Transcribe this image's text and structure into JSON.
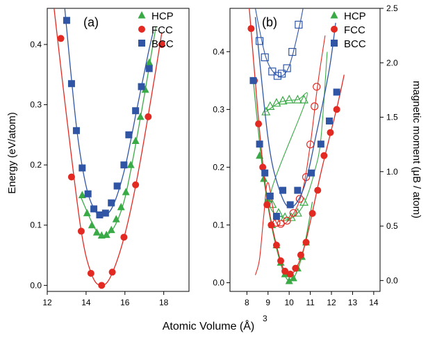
{
  "figure": {
    "ylabel_left": "Energy (eV/atom)",
    "ylabel_right": "magnetic moment (μB / atom)",
    "xlabel": "Atomic Volume (Å)",
    "xlabel_sup": "3"
  },
  "chart_data": [
    {
      "type": "scatter",
      "panel_label": "(a)",
      "xlim": [
        12,
        19.3
      ],
      "ylim": [
        -0.01,
        0.46
      ],
      "x_ticks": [
        12,
        14,
        16,
        18
      ],
      "y_ticks": [
        0.0,
        0.1,
        0.2,
        0.3,
        0.4
      ],
      "y_tick_labels": [
        "0.0",
        "0.1",
        "0.2",
        "0.3",
        "0.4"
      ],
      "legend": {
        "position": "top-right",
        "entries": [
          "HCP",
          "FCC",
          "BCC"
        ]
      },
      "series": [
        {
          "name": "HCP",
          "color": "#3aaa46",
          "marker": "triangle",
          "points": [
            [
              13.8,
              0.15
            ],
            [
              14.05,
              0.12
            ],
            [
              14.3,
              0.1
            ],
            [
              14.55,
              0.088
            ],
            [
              14.8,
              0.083
            ],
            [
              15.05,
              0.084
            ],
            [
              15.3,
              0.092
            ],
            [
              15.55,
              0.11
            ],
            [
              15.8,
              0.13
            ],
            [
              16.05,
              0.155
            ],
            [
              16.3,
              0.2
            ],
            [
              16.55,
              0.24
            ],
            [
              16.8,
              0.28
            ],
            [
              17.05,
              0.325
            ],
            [
              17.25,
              0.37
            ]
          ],
          "fit": [
            [
              13.75,
              0.145
            ],
            [
              14.5,
              0.092
            ],
            [
              15.0,
              0.083
            ],
            [
              15.5,
              0.1
            ],
            [
              16.0,
              0.145
            ],
            [
              16.5,
              0.225
            ],
            [
              17.0,
              0.315
            ],
            [
              17.6,
              0.43
            ]
          ]
        },
        {
          "name": "FCC",
          "color": "#e32a22",
          "marker": "circle",
          "points": [
            [
              12.7,
              0.41
            ],
            [
              13.25,
              0.18
            ],
            [
              13.75,
              0.09
            ],
            [
              14.25,
              0.02
            ],
            [
              14.8,
              0.0
            ],
            [
              15.35,
              0.022
            ],
            [
              15.95,
              0.08
            ],
            [
              16.55,
              0.167
            ],
            [
              17.2,
              0.28
            ],
            [
              17.9,
              0.4
            ]
          ],
          "fit": [
            [
              12.35,
              0.46
            ],
            [
              13.0,
              0.28
            ],
            [
              13.75,
              0.09
            ],
            [
              14.3,
              0.017
            ],
            [
              14.8,
              0.0
            ],
            [
              15.3,
              0.017
            ],
            [
              16.0,
              0.085
            ],
            [
              16.7,
              0.19
            ],
            [
              17.5,
              0.34
            ],
            [
              17.9,
              0.42
            ]
          ]
        },
        {
          "name": "BCC",
          "color": "#2f55a4",
          "marker": "square",
          "points": [
            [
              13.0,
              0.44
            ],
            [
              13.25,
              0.335
            ],
            [
              13.5,
              0.257
            ],
            [
              13.8,
              0.195
            ],
            [
              14.1,
              0.152
            ],
            [
              14.4,
              0.127
            ],
            [
              14.7,
              0.117
            ],
            [
              15.0,
              0.12
            ],
            [
              15.3,
              0.137
            ],
            [
              15.6,
              0.165
            ],
            [
              15.95,
              0.2
            ],
            [
              16.2,
              0.25
            ],
            [
              16.55,
              0.29
            ],
            [
              16.85,
              0.33
            ],
            [
              17.25,
              0.36
            ]
          ],
          "fit": [
            [
              12.9,
              0.46
            ],
            [
              13.5,
              0.265
            ],
            [
              14.0,
              0.165
            ],
            [
              14.5,
              0.122
            ],
            [
              14.9,
              0.115
            ],
            [
              15.4,
              0.133
            ],
            [
              16.0,
              0.195
            ],
            [
              16.6,
              0.29
            ],
            [
              17.2,
              0.385
            ],
            [
              17.45,
              0.42
            ]
          ]
        }
      ]
    },
    {
      "type": "scatter",
      "panel_label": "(b)",
      "xlim": [
        7.2,
        14.3
      ],
      "ylim": [
        -0.015,
        0.475
      ],
      "y2lim": [
        -0.1,
        2.5
      ],
      "x_ticks": [
        8,
        9,
        10,
        11,
        12,
        13,
        14
      ],
      "y_ticks": [
        0.0,
        0.1,
        0.2,
        0.3,
        0.4
      ],
      "y_tick_labels": [
        "0.0",
        "0.1",
        "0.2",
        "0.3",
        "0.4"
      ],
      "y2_ticks": [
        0.0,
        0.5,
        1.0,
        1.5,
        2.0,
        2.5
      ],
      "y2_tick_labels": [
        "0.0",
        "0.5",
        "1.0",
        "1.5",
        "2.0",
        "2.5"
      ],
      "legend": {
        "position": "top-right",
        "entries": [
          "HCP",
          "FCC",
          "BCC"
        ]
      },
      "energy_series": [
        {
          "name": "HCP",
          "color": "#3aaa46",
          "marker": "triangle",
          "points": [
            [
              8.6,
              0.22
            ],
            [
              8.8,
              0.18
            ],
            [
              9.0,
              0.145
            ],
            [
              9.2,
              0.1
            ],
            [
              9.4,
              0.065
            ],
            [
              9.6,
              0.035
            ],
            [
              9.8,
              0.015
            ],
            [
              10.0,
              0.003
            ],
            [
              10.2,
              0.008
            ],
            [
              10.4,
              0.025
            ],
            [
              10.6,
              0.045
            ],
            [
              10.8,
              0.07
            ]
          ],
          "fit": [
            [
              8.3,
              0.35
            ],
            [
              8.8,
              0.18
            ],
            [
              9.4,
              0.06
            ],
            [
              10.0,
              0.003
            ],
            [
              10.6,
              0.045
            ],
            [
              11.1,
              0.14
            ]
          ]
        },
        {
          "name": "FCC",
          "color": "#e32a22",
          "marker": "circle",
          "points": [
            [
              8.2,
              0.44
            ],
            [
              8.35,
              0.35
            ],
            [
              8.55,
              0.275
            ],
            [
              8.75,
              0.2
            ],
            [
              8.95,
              0.135
            ],
            [
              9.15,
              0.1
            ],
            [
              9.4,
              0.065
            ],
            [
              9.6,
              0.038
            ],
            [
              9.8,
              0.02
            ],
            [
              10.05,
              0.015
            ],
            [
              10.3,
              0.025
            ],
            [
              10.55,
              0.048
            ],
            [
              10.8,
              0.07
            ],
            [
              11.1,
              0.12
            ],
            [
              11.35,
              0.16
            ],
            [
              11.65,
              0.22
            ],
            [
              11.95,
              0.26
            ],
            [
              12.25,
              0.3
            ]
          ],
          "fit": [
            [
              8.1,
              0.48
            ],
            [
              8.8,
              0.19
            ],
            [
              9.5,
              0.05
            ],
            [
              10.05,
              0.014
            ],
            [
              10.7,
              0.06
            ],
            [
              11.5,
              0.19
            ],
            [
              12.3,
              0.31
            ],
            [
              12.6,
              0.36
            ]
          ]
        },
        {
          "name": "BCC",
          "color": "#2f55a4",
          "marker": "square",
          "points": [
            [
              8.3,
              0.35
            ],
            [
              8.6,
              0.24
            ],
            [
              8.85,
              0.19
            ],
            [
              9.1,
              0.15
            ],
            [
              9.4,
              0.115
            ],
            [
              9.7,
              0.16
            ],
            [
              10.05,
              0.135
            ],
            [
              10.4,
              0.16
            ],
            [
              11.05,
              0.19
            ],
            [
              11.5,
              0.24
            ],
            [
              11.9,
              0.28
            ],
            [
              12.25,
              0.33
            ]
          ],
          "fit": [
            [
              8.4,
              0.46
            ],
            [
              9.0,
              0.25
            ],
            [
              9.5,
              0.165
            ],
            [
              10.05,
              0.13
            ],
            [
              10.7,
              0.165
            ],
            [
              11.3,
              0.26
            ],
            [
              11.9,
              0.37
            ],
            [
              12.2,
              0.45
            ]
          ]
        }
      ],
      "moment_series": [
        {
          "name": "HCP",
          "color": "#3aaa46",
          "marker": "triangle-open",
          "points": [
            [
              8.9,
              1.55
            ],
            [
              9.1,
              1.6
            ],
            [
              9.4,
              1.63
            ],
            [
              9.7,
              1.65
            ],
            [
              10.0,
              1.66
            ],
            [
              10.4,
              1.66
            ],
            [
              10.7,
              1.66
            ],
            [
              9.2,
              0.7
            ],
            [
              9.5,
              0.62
            ],
            [
              9.8,
              0.58
            ],
            [
              10.1,
              0.58
            ],
            [
              10.4,
              0.62
            ],
            [
              10.7,
              0.72
            ]
          ],
          "fit": [
            [
              8.9,
              1.55
            ],
            [
              9.6,
              1.64
            ],
            [
              10.4,
              1.66
            ],
            [
              10.8,
              1.66
            ],
            [
              9.1,
              0.78
            ],
            [
              9.8,
              0.57
            ],
            [
              10.4,
              0.62
            ],
            [
              10.8,
              0.75
            ],
            [
              11.2,
              1.0
            ],
            [
              11.5,
              1.3
            ],
            [
              11.8,
              2.1
            ]
          ]
        },
        {
          "name": "FCC",
          "color": "#e32a22",
          "marker": "circle-open",
          "points": [
            [
              9.4,
              0.53
            ],
            [
              9.6,
              0.52
            ],
            [
              9.9,
              0.55
            ],
            [
              10.2,
              0.62
            ],
            [
              10.5,
              0.75
            ],
            [
              10.8,
              0.95
            ],
            [
              11.0,
              1.25
            ],
            [
              11.2,
              1.6
            ],
            [
              11.3,
              1.78
            ]
          ],
          "fit": [
            [
              8.4,
              0.05
            ],
            [
              8.6,
              0.2
            ],
            [
              8.8,
              0.6
            ],
            [
              9.0,
              0.9
            ],
            [
              9.4,
              0.53
            ],
            [
              10.0,
              0.56
            ],
            [
              10.6,
              0.8
            ],
            [
              11.0,
              1.25
            ],
            [
              11.35,
              1.8
            ],
            [
              11.7,
              2.25
            ]
          ]
        },
        {
          "name": "BCC",
          "color": "#2f55a4",
          "marker": "square-open",
          "points": [
            [
              8.6,
              2.2
            ],
            [
              8.85,
              2.05
            ],
            [
              9.2,
              1.92
            ],
            [
              9.45,
              1.88
            ],
            [
              9.65,
              1.9
            ],
            [
              9.9,
              1.95
            ],
            [
              10.15,
              2.1
            ],
            [
              10.45,
              2.35
            ]
          ],
          "fit": [
            [
              8.3,
              2.6
            ],
            [
              8.9,
              2.05
            ],
            [
              9.5,
              1.88
            ],
            [
              10.0,
              1.97
            ],
            [
              10.5,
              2.35
            ],
            [
              10.75,
              2.6
            ]
          ]
        }
      ]
    }
  ]
}
